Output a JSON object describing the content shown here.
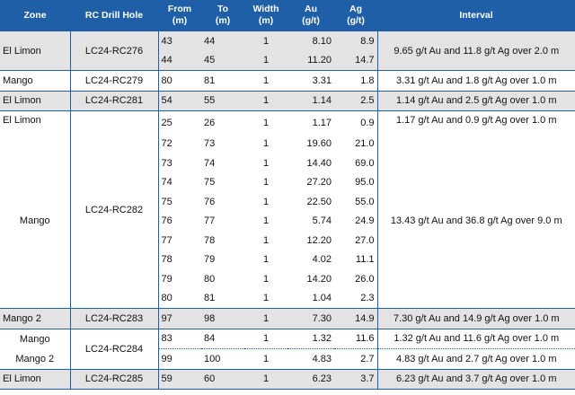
{
  "headers": {
    "zone": "Zone",
    "hole": "RC Drill Hole",
    "from": [
      "From",
      "(m)"
    ],
    "to": [
      "To",
      "(m)"
    ],
    "width": [
      "Width",
      "(m)"
    ],
    "au": [
      "Au",
      "(g/t)"
    ],
    "ag": [
      "Ag",
      "(g/t)"
    ],
    "interval": "Interval"
  },
  "groups": [
    {
      "zones": [
        {
          "name": "El Limon",
          "rows": 2
        }
      ],
      "hole": "LC24-RC276",
      "shaded": true,
      "rows": [
        {
          "from": "43",
          "to": "44",
          "width": "1",
          "au": "8.10",
          "ag": "8.9"
        },
        {
          "from": "44",
          "to": "45",
          "width": "1",
          "au": "11.20",
          "ag": "14.7"
        }
      ],
      "intervals": [
        {
          "text": "9.65 g/t Au and 11.8 g/t Ag over 2.0 m",
          "rows": 2
        }
      ]
    },
    {
      "zones": [
        {
          "name": "Mango",
          "rows": 1
        }
      ],
      "hole": "LC24-RC279",
      "shaded": false,
      "rows": [
        {
          "from": "80",
          "to": "81",
          "width": "1",
          "au": "3.31",
          "ag": "1.8"
        }
      ],
      "intervals": [
        {
          "text": "3.31 g/t Au and 1.8 g/t Ag over 1.0 m",
          "rows": 1
        }
      ]
    },
    {
      "zones": [
        {
          "name": "El Limon",
          "rows": 1
        }
      ],
      "hole": "LC24-RC281",
      "shaded": true,
      "rows": [
        {
          "from": "54",
          "to": "55",
          "width": "1",
          "au": "1.14",
          "ag": "2.5"
        }
      ],
      "intervals": [
        {
          "text": "1.14 g/t Au and 2.5 g/t Ag over 1.0 m",
          "rows": 1
        }
      ]
    },
    {
      "zones": [
        {
          "name": "El Limon",
          "rows": 1
        },
        {
          "name": "Mango",
          "rows": 9
        }
      ],
      "hole": "LC24-RC282",
      "shaded": false,
      "rows": [
        {
          "from": "25",
          "to": "26",
          "width": "1",
          "au": "1.17",
          "ag": "0.9"
        },
        {
          "from": "72",
          "to": "73",
          "width": "1",
          "au": "19.60",
          "ag": "21.0"
        },
        {
          "from": "73",
          "to": "74",
          "width": "1",
          "au": "14.40",
          "ag": "69.0"
        },
        {
          "from": "74",
          "to": "75",
          "width": "1",
          "au": "27.20",
          "ag": "95.0"
        },
        {
          "from": "75",
          "to": "76",
          "width": "1",
          "au": "22.50",
          "ag": "55.0"
        },
        {
          "from": "76",
          "to": "77",
          "width": "1",
          "au": "5.74",
          "ag": "24.9"
        },
        {
          "from": "77",
          "to": "78",
          "width": "1",
          "au": "12.20",
          "ag": "27.0"
        },
        {
          "from": "78",
          "to": "79",
          "width": "1",
          "au": "4.02",
          "ag": "11.1"
        },
        {
          "from": "79",
          "to": "80",
          "width": "1",
          "au": "14.20",
          "ag": "26.0"
        },
        {
          "from": "80",
          "to": "81",
          "width": "1",
          "au": "1.04",
          "ag": "2.3"
        }
      ],
      "intervals": [
        {
          "text": "1.17 g/t Au and 0.9 g/t Ag over 1.0 m",
          "rows": 1
        },
        {
          "text": "13.43 g/t Au and 36.8 g/t Ag over 9.0 m",
          "rows": 9
        }
      ]
    },
    {
      "zones": [
        {
          "name": "Mango 2",
          "rows": 1
        }
      ],
      "hole": "LC24-RC283",
      "shaded": true,
      "rows": [
        {
          "from": "97",
          "to": "98",
          "width": "1",
          "au": "7.30",
          "ag": "14.9"
        }
      ],
      "intervals": [
        {
          "text": "7.30 g/t Au and 14.9 g/t Ag over 1.0 m",
          "rows": 1
        }
      ]
    },
    {
      "zones": [
        {
          "name": "Mango",
          "rows": 1
        },
        {
          "name": "Mango 2",
          "rows": 1
        }
      ],
      "hole": "LC24-RC284",
      "shaded": false,
      "rows": [
        {
          "from": "83",
          "to": "84",
          "width": "1",
          "au": "1.32",
          "ag": "11.6"
        },
        {
          "from": "99",
          "to": "100",
          "width": "1",
          "au": "4.83",
          "ag": "2.7"
        }
      ],
      "intervals": [
        {
          "text": "1.32 g/t Au and 11.6 g/t Ag over 1.0 m",
          "rows": 1
        },
        {
          "text": "4.83 g/t Au and 2.7 g/t Ag over 1.0 m",
          "rows": 1
        }
      ]
    },
    {
      "zones": [
        {
          "name": "El Limon",
          "rows": 1
        }
      ],
      "hole": "LC24-RC285",
      "shaded": true,
      "rows": [
        {
          "from": "59",
          "to": "60",
          "width": "1",
          "au": "6.23",
          "ag": "3.7"
        }
      ],
      "intervals": [
        {
          "text": "6.23 g/t Au and 3.7 g/t Ag over 1.0 m",
          "rows": 1
        }
      ]
    }
  ]
}
